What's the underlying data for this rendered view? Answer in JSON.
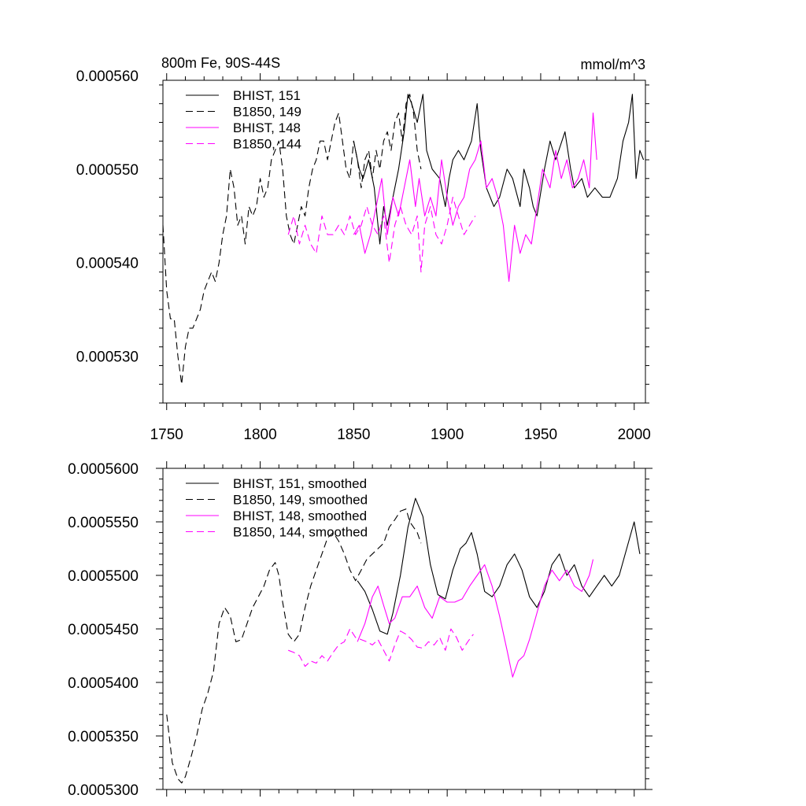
{
  "chart_data": [
    {
      "type": "line",
      "title_left": "800m Fe, 90S-44S",
      "title_right": "mmol/m^3",
      "xlim": [
        1748,
        2006
      ],
      "ylim": [
        0.000525,
        0.0005595
      ],
      "xticks": [
        1750,
        1800,
        1850,
        1900,
        1950,
        2000
      ],
      "xticklabels": [
        "1750",
        "1800",
        "1850",
        "1900",
        "1950",
        "2000"
      ],
      "yticks": [
        0.00053,
        0.00054,
        0.00055,
        0.00056
      ],
      "yticklabels": [
        "0.000530",
        "0.000540",
        "0.000550",
        "0.000560"
      ],
      "series": [
        {
          "name": "BHIST, 151",
          "color": "#000000",
          "dash": "solid",
          "x": [
            1850,
            1853,
            1855,
            1858,
            1861,
            1864,
            1866,
            1868,
            1871,
            1874,
            1877,
            1879,
            1881,
            1884,
            1887,
            1889,
            1892,
            1896,
            1899,
            1901,
            1903,
            1906,
            1909,
            1913,
            1916,
            1918,
            1921,
            1925,
            1928,
            1932,
            1935,
            1939,
            1941,
            1944,
            1946,
            1948,
            1952,
            1955,
            1958,
            1963,
            1966,
            1968,
            1972,
            1975,
            1979,
            1983,
            1987,
            1991,
            1994,
            1997,
            1999,
            2001,
            2003,
            2005
          ],
          "y": [
            0.000553,
            0.00055,
            0.000549,
            0.000551,
            0.000548,
            0.000542,
            0.000546,
            0.000544,
            0.000547,
            0.00055,
            0.000554,
            0.000558,
            0.000557,
            0.000555,
            0.000558,
            0.000552,
            0.00055,
            0.000549,
            0.000546,
            0.000549,
            0.000551,
            0.000552,
            0.000551,
            0.000553,
            0.000557,
            0.000552,
            0.000548,
            0.000546,
            0.000547,
            0.00055,
            0.000549,
            0.000546,
            0.00055,
            0.000548,
            0.000546,
            0.000545,
            0.00055,
            0.000553,
            0.000551,
            0.000554,
            0.00055,
            0.000548,
            0.000549,
            0.000547,
            0.000548,
            0.000547,
            0.000547,
            0.000549,
            0.000553,
            0.000555,
            0.000558,
            0.000549,
            0.000552,
            0.000551
          ]
        },
        {
          "name": "B1850, 149",
          "color": "#000000",
          "dash": "dashed",
          "x": [
            1748,
            1750,
            1752,
            1754,
            1756,
            1758,
            1760,
            1762,
            1764,
            1766,
            1768,
            1770,
            1772,
            1774,
            1776,
            1778,
            1780,
            1782,
            1784,
            1786,
            1788,
            1790,
            1792,
            1794,
            1796,
            1798,
            1800,
            1802,
            1804,
            1806,
            1808,
            1810,
            1812,
            1814,
            1816,
            1818,
            1820,
            1822,
            1824,
            1826,
            1828,
            1830,
            1832,
            1834,
            1836,
            1838,
            1840,
            1842,
            1844,
            1846,
            1848,
            1850,
            1852,
            1854,
            1856,
            1858,
            1860,
            1862,
            1864,
            1866,
            1868,
            1870,
            1872,
            1874,
            1876,
            1878,
            1880,
            1882,
            1884,
            1886
          ],
          "y": [
            0.000544,
            0.000537,
            0.000534,
            0.000534,
            0.00053,
            0.000527,
            0.000531,
            0.000533,
            0.000533,
            0.000534,
            0.000535,
            0.000537,
            0.000538,
            0.000539,
            0.000538,
            0.00054,
            0.000543,
            0.000545,
            0.00055,
            0.000548,
            0.000544,
            0.000545,
            0.000542,
            0.000546,
            0.000545,
            0.000546,
            0.000549,
            0.000547,
            0.000548,
            0.000551,
            0.000552,
            0.000553,
            0.00055,
            0.000545,
            0.000543,
            0.000542,
            0.000544,
            0.000546,
            0.000545,
            0.000548,
            0.00055,
            0.000551,
            0.000553,
            0.000553,
            0.000551,
            0.000553,
            0.000555,
            0.000556,
            0.000553,
            0.00055,
            0.000549,
            0.000553,
            0.000551,
            0.000548,
            0.000551,
            0.000552,
            0.000549,
            0.000552,
            0.00055,
            0.000553,
            0.000554,
            0.000552,
            0.000555,
            0.000556,
            0.000553,
            0.000557,
            0.000558,
            0.000556,
            0.000552,
            0.00055
          ]
        },
        {
          "name": "BHIST, 148",
          "color": "#ff00ff",
          "dash": "solid",
          "x": [
            1850,
            1853,
            1856,
            1859,
            1862,
            1865,
            1868,
            1871,
            1874,
            1877,
            1880,
            1883,
            1885,
            1888,
            1891,
            1894,
            1897,
            1900,
            1903,
            1906,
            1909,
            1912,
            1915,
            1918,
            1921,
            1924,
            1927,
            1930,
            1933,
            1936,
            1939,
            1942,
            1945,
            1948,
            1951,
            1955,
            1958,
            1961,
            1964,
            1967,
            1970,
            1973,
            1976,
            1978,
            1980
          ],
          "y": [
            0.000543,
            0.000544,
            0.000541,
            0.000543,
            0.000546,
            0.000549,
            0.000543,
            0.000547,
            0.000545,
            0.000548,
            0.000551,
            0.000546,
            0.000549,
            0.000545,
            0.000547,
            0.000545,
            0.000551,
            0.000547,
            0.000544,
            0.000546,
            0.000547,
            0.00055,
            0.000551,
            0.000553,
            0.000548,
            0.000549,
            0.000547,
            0.000544,
            0.000538,
            0.000544,
            0.000541,
            0.000543,
            0.000542,
            0.000546,
            0.00055,
            0.000548,
            0.000552,
            0.000549,
            0.000551,
            0.000548,
            0.000549,
            0.000551,
            0.000548,
            0.000556,
            0.000551
          ]
        },
        {
          "name": "B1850, 144",
          "color": "#ff00ff",
          "dash": "dashed",
          "x": [
            1815,
            1818,
            1821,
            1824,
            1827,
            1830,
            1833,
            1836,
            1839,
            1842,
            1845,
            1848,
            1851,
            1854,
            1857,
            1860,
            1863,
            1866,
            1869,
            1872,
            1875,
            1878,
            1881,
            1884,
            1886,
            1888,
            1891,
            1894,
            1897,
            1900,
            1903,
            1906,
            1909,
            1912,
            1915
          ],
          "y": [
            0.000543,
            0.000545,
            0.000542,
            0.000544,
            0.000542,
            0.000541,
            0.000545,
            0.000543,
            0.000543,
            0.000544,
            0.000543,
            0.000545,
            0.000543,
            0.000544,
            0.000546,
            0.000544,
            0.000543,
            0.000545,
            0.00054,
            0.000544,
            0.000546,
            0.000544,
            0.000543,
            0.000545,
            0.000539,
            0.000544,
            0.000546,
            0.000543,
            0.000542,
            0.000544,
            0.000547,
            0.000545,
            0.000543,
            0.000544,
            0.000545
          ]
        }
      ]
    },
    {
      "type": "line",
      "xlim": [
        1748,
        2006
      ],
      "ylim": [
        0.00053,
        0.00056
      ],
      "xticks": [
        1750,
        1800,
        1850,
        1900,
        1950,
        2000
      ],
      "yticks": [
        0.00053,
        0.000535,
        0.00054,
        0.000545,
        0.00055,
        0.000555,
        0.00056
      ],
      "yticklabels": [
        "0.0005300",
        "0.0005350",
        "0.0005400",
        "0.0005450",
        "0.0005500",
        "0.0005550",
        "0.0005600"
      ],
      "series": [
        {
          "name": "BHIST, 151, smoothed",
          "color": "#000000",
          "dash": "solid",
          "x": [
            1852,
            1856,
            1860,
            1864,
            1868,
            1871,
            1875,
            1879,
            1883,
            1887,
            1891,
            1895,
            1899,
            1903,
            1907,
            1910,
            1913,
            1916,
            1920,
            1924,
            1928,
            1932,
            1936,
            1940,
            1944,
            1948,
            1952,
            1956,
            1960,
            1964,
            1968,
            1972,
            1976,
            1980,
            1984,
            1988,
            1992,
            1996,
            2000,
            2003
          ],
          "y": [
            0.0005495,
            0.0005485,
            0.0005468,
            0.0005448,
            0.0005445,
            0.0005465,
            0.00055,
            0.0005545,
            0.0005572,
            0.0005555,
            0.000551,
            0.0005482,
            0.0005478,
            0.0005505,
            0.0005525,
            0.000553,
            0.000554,
            0.000552,
            0.0005485,
            0.000548,
            0.000549,
            0.000551,
            0.000552,
            0.0005505,
            0.000548,
            0.000547,
            0.0005485,
            0.000551,
            0.000552,
            0.00055,
            0.000551,
            0.000549,
            0.000548,
            0.000549,
            0.00055,
            0.000549,
            0.00055,
            0.0005525,
            0.000555,
            0.000552
          ]
        },
        {
          "name": "B1850, 149, smoothed",
          "color": "#000000",
          "dash": "dashed",
          "x": [
            1750,
            1753,
            1756,
            1758,
            1760,
            1763,
            1766,
            1769,
            1772,
            1775,
            1778,
            1781,
            1784,
            1787,
            1790,
            1793,
            1796,
            1799,
            1802,
            1805,
            1808,
            1810,
            1812,
            1815,
            1818,
            1821,
            1824,
            1827,
            1830,
            1833,
            1836,
            1839,
            1842,
            1845,
            1848,
            1851,
            1854,
            1857,
            1860,
            1863,
            1866,
            1869,
            1872,
            1875,
            1878,
            1880,
            1882,
            1884,
            1886
          ],
          "y": [
            0.000537,
            0.0005325,
            0.000531,
            0.0005306,
            0.0005312,
            0.000533,
            0.000535,
            0.0005375,
            0.000539,
            0.000541,
            0.0005455,
            0.000547,
            0.0005462,
            0.0005438,
            0.000544,
            0.0005455,
            0.000547,
            0.000548,
            0.000549,
            0.0005505,
            0.0005512,
            0.00055,
            0.0005475,
            0.0005445,
            0.0005438,
            0.0005445,
            0.000547,
            0.000549,
            0.0005505,
            0.000552,
            0.0005535,
            0.000554,
            0.0005532,
            0.000552,
            0.0005505,
            0.0005495,
            0.0005505,
            0.0005515,
            0.000552,
            0.0005525,
            0.000553,
            0.0005545,
            0.0005552,
            0.000556,
            0.0005562,
            0.000555,
            0.0005545,
            0.000554,
            0.000553
          ]
        },
        {
          "name": "BHIST, 148, smoothed",
          "color": "#ff00ff",
          "dash": "solid",
          "x": [
            1852,
            1856,
            1860,
            1863,
            1866,
            1869,
            1872,
            1876,
            1880,
            1884,
            1888,
            1892,
            1896,
            1900,
            1904,
            1908,
            1912,
            1916,
            1920,
            1924,
            1928,
            1932,
            1935,
            1938,
            1941,
            1944,
            1948,
            1952,
            1956,
            1960,
            1964,
            1968,
            1972,
            1976,
            1978
          ],
          "y": [
            0.0005438,
            0.0005455,
            0.000548,
            0.000549,
            0.0005472,
            0.0005455,
            0.000546,
            0.000548,
            0.000548,
            0.000549,
            0.000547,
            0.000546,
            0.000548,
            0.0005475,
            0.0005475,
            0.0005478,
            0.000549,
            0.00055,
            0.000551,
            0.000549,
            0.0005462,
            0.000543,
            0.0005405,
            0.000542,
            0.0005425,
            0.000544,
            0.0005465,
            0.000549,
            0.0005505,
            0.0005495,
            0.0005505,
            0.000549,
            0.0005485,
            0.00055,
            0.0005515
          ]
        },
        {
          "name": "B1850, 144, smoothed",
          "color": "#ff00ff",
          "dash": "dashed",
          "x": [
            1815,
            1818,
            1821,
            1824,
            1827,
            1830,
            1833,
            1836,
            1839,
            1842,
            1845,
            1848,
            1851,
            1854,
            1857,
            1860,
            1863,
            1866,
            1869,
            1872,
            1875,
            1878,
            1881,
            1884,
            1887,
            1890,
            1893,
            1896,
            1899,
            1902,
            1905,
            1908,
            1911,
            1914
          ],
          "y": [
            0.000543,
            0.0005428,
            0.0005425,
            0.0005415,
            0.000542,
            0.0005418,
            0.0005425,
            0.000542,
            0.0005428,
            0.0005435,
            0.0005438,
            0.000545,
            0.0005442,
            0.000544,
            0.0005438,
            0.0005435,
            0.000544,
            0.000543,
            0.000542,
            0.0005435,
            0.0005448,
            0.0005445,
            0.000544,
            0.0005433,
            0.0005432,
            0.0005438,
            0.0005435,
            0.0005442,
            0.000543,
            0.000545,
            0.0005442,
            0.000543,
            0.0005438,
            0.0005445
          ]
        }
      ]
    }
  ]
}
